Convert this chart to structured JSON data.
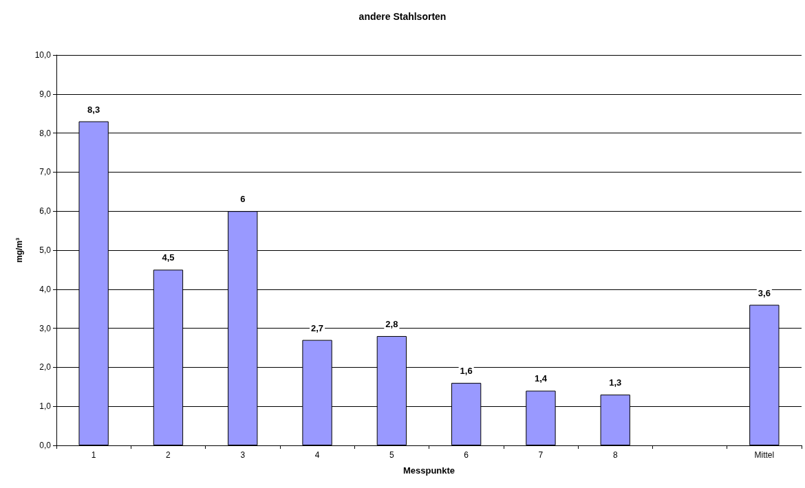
{
  "chart_data": {
    "type": "bar",
    "title": "andere Stahlsorten",
    "xlabel": "Messpunkte",
    "ylabel": "mg/m³",
    "categories": [
      "1",
      "2",
      "3",
      "4",
      "5",
      "6",
      "7",
      "8",
      null,
      "Mittel"
    ],
    "values": [
      8.3,
      4.5,
      6,
      2.7,
      2.8,
      1.6,
      1.4,
      1.3,
      null,
      3.6
    ],
    "value_labels": [
      "8,3",
      "4,5",
      "6",
      "2,7",
      "2,8",
      "1,6",
      "1,4",
      "1,3",
      null,
      "3,6"
    ],
    "color": "#9999ff",
    "ylim": [
      0,
      10
    ],
    "yticks": [
      {
        "value": 0,
        "label": "0,0"
      },
      {
        "value": 1,
        "label": "1,0"
      },
      {
        "value": 2,
        "label": "2,0"
      },
      {
        "value": 3,
        "label": "3,0"
      },
      {
        "value": 4,
        "label": "4,0"
      },
      {
        "value": 5,
        "label": "5,0"
      },
      {
        "value": 6,
        "label": "6,0"
      },
      {
        "value": 7,
        "label": "7,0"
      },
      {
        "value": 8,
        "label": "8,0"
      },
      {
        "value": 9,
        "label": "9,0"
      },
      {
        "value": 10,
        "label": "10,0"
      }
    ],
    "grid": "y"
  }
}
